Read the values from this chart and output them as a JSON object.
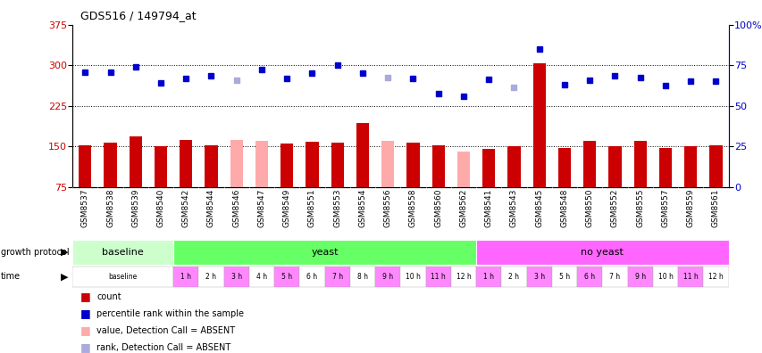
{
  "title": "GDS516 / 149794_at",
  "samples": [
    "GSM8537",
    "GSM8538",
    "GSM8539",
    "GSM8540",
    "GSM8542",
    "GSM8544",
    "GSM8546",
    "GSM8547",
    "GSM8549",
    "GSM8551",
    "GSM8553",
    "GSM8554",
    "GSM8556",
    "GSM8558",
    "GSM8560",
    "GSM8562",
    "GSM8541",
    "GSM8543",
    "GSM8545",
    "GSM8548",
    "GSM8550",
    "GSM8552",
    "GSM8555",
    "GSM8557",
    "GSM8559",
    "GSM8561"
  ],
  "bar_values": [
    152,
    157,
    168,
    150,
    162,
    152,
    162,
    160,
    155,
    158,
    157,
    193,
    160,
    157,
    153,
    140,
    145,
    150,
    303,
    148,
    160,
    150,
    160,
    148,
    150,
    152
  ],
  "bar_absent": [
    false,
    false,
    false,
    false,
    false,
    false,
    true,
    true,
    false,
    false,
    false,
    false,
    true,
    false,
    false,
    true,
    false,
    false,
    false,
    false,
    false,
    false,
    false,
    false,
    false,
    false
  ],
  "dot_values": [
    288,
    288,
    297,
    268,
    276,
    280,
    272,
    293,
    276,
    285,
    300,
    285,
    278,
    275,
    248,
    243,
    274,
    260,
    330,
    265,
    272,
    280,
    278,
    262,
    270,
    270
  ],
  "dot_absent": [
    false,
    false,
    false,
    false,
    false,
    false,
    true,
    false,
    false,
    false,
    false,
    false,
    true,
    false,
    false,
    false,
    false,
    true,
    false,
    false,
    false,
    false,
    false,
    false,
    false,
    false
  ],
  "bar_color_present": "#cc0000",
  "bar_color_absent": "#ffaaaa",
  "dot_color_present": "#0000cc",
  "dot_color_absent": "#aaaadd",
  "ylim_left": [
    75,
    375
  ],
  "ylim_right": [
    0,
    100
  ],
  "yticks_left": [
    75,
    150,
    225,
    300,
    375
  ],
  "yticks_right": [
    0,
    25,
    50,
    75,
    100
  ],
  "hlines": [
    150,
    225,
    300
  ],
  "gp_groups": [
    {
      "label": "baseline",
      "start": 0,
      "end": 4,
      "color": "#ccffcc"
    },
    {
      "label": "yeast",
      "start": 4,
      "end": 16,
      "color": "#66ff66"
    },
    {
      "label": "no yeast",
      "start": 16,
      "end": 26,
      "color": "#ff66ff"
    }
  ],
  "time_data": [
    [
      0,
      4,
      "baseline",
      "#ffffff"
    ],
    [
      4,
      5,
      "1 h",
      "#ff88ff"
    ],
    [
      5,
      6,
      "2 h",
      "#ffffff"
    ],
    [
      6,
      7,
      "3 h",
      "#ff88ff"
    ],
    [
      7,
      8,
      "4 h",
      "#ffffff"
    ],
    [
      8,
      9,
      "5 h",
      "#ff88ff"
    ],
    [
      9,
      10,
      "6 h",
      "#ffffff"
    ],
    [
      10,
      11,
      "7 h",
      "#ff88ff"
    ],
    [
      11,
      12,
      "8 h",
      "#ffffff"
    ],
    [
      12,
      13,
      "9 h",
      "#ff88ff"
    ],
    [
      13,
      14,
      "10 h",
      "#ffffff"
    ],
    [
      14,
      15,
      "11 h",
      "#ff88ff"
    ],
    [
      15,
      16,
      "12 h",
      "#ffffff"
    ],
    [
      16,
      17,
      "1 h",
      "#ff88ff"
    ],
    [
      17,
      18,
      "2 h",
      "#ffffff"
    ],
    [
      18,
      19,
      "3 h",
      "#ff88ff"
    ],
    [
      19,
      20,
      "5 h",
      "#ffffff"
    ],
    [
      20,
      21,
      "6 h",
      "#ff88ff"
    ],
    [
      21,
      22,
      "7 h",
      "#ffffff"
    ],
    [
      22,
      23,
      "9 h",
      "#ff88ff"
    ],
    [
      23,
      24,
      "10 h",
      "#ffffff"
    ],
    [
      24,
      25,
      "11 h",
      "#ff88ff"
    ],
    [
      25,
      26,
      "12 h",
      "#ffffff"
    ]
  ],
  "legend_items": [
    {
      "color": "#cc0000",
      "label": "count"
    },
    {
      "color": "#0000cc",
      "label": "percentile rank within the sample"
    },
    {
      "color": "#ffaaaa",
      "label": "value, Detection Call = ABSENT"
    },
    {
      "color": "#aaaadd",
      "label": "rank, Detection Call = ABSENT"
    }
  ]
}
